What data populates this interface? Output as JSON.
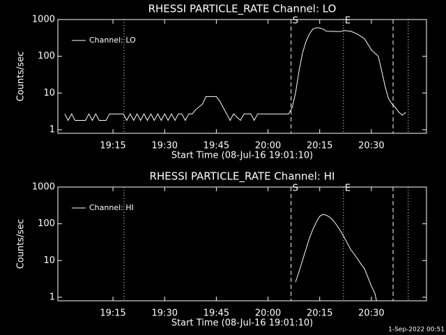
{
  "chart_data": [
    {
      "type": "line",
      "title": "RHESSI PARTICLE_RATE Channel: LO",
      "xlabel": "Start Time (08-Jul-16 19:01:10)",
      "ylabel": "Counts/sec",
      "ylog": true,
      "xlim": [
        "18:59",
        "20:46"
      ],
      "xticks": [
        "19:15",
        "19:30",
        "19:45",
        "20:00",
        "20:15",
        "20:30"
      ],
      "ylim": [
        0.8,
        1000
      ],
      "yticks": [
        1,
        10,
        100,
        1000
      ],
      "legend": "upper left",
      "x": [
        "19:01",
        "19:02",
        "19:03",
        "19:04",
        "19:07",
        "19:08",
        "19:09",
        "19:10",
        "19:11",
        "19:13",
        "19:14",
        "19:18",
        "19:19",
        "19:20",
        "19:21",
        "19:22",
        "19:23",
        "19:24",
        "19:25",
        "19:26",
        "19:27",
        "19:28",
        "19:29",
        "19:30",
        "19:31",
        "19:32",
        "19:33",
        "19:34",
        "19:35",
        "19:36",
        "19:37",
        "19:38",
        "19:39",
        "19:41",
        "19:42",
        "19:45",
        "19:46",
        "19:47",
        "19:48",
        "19:49",
        "19:50",
        "19:52",
        "19:53",
        "19:55",
        "19:56",
        "19:57",
        "20:06",
        "20:07",
        "20:08",
        "20:09",
        "20:10",
        "20:11",
        "20:12",
        "20:13",
        "20:14",
        "20:15",
        "20:16",
        "20:17",
        "20:21",
        "20:22",
        "20:24",
        "20:26",
        "20:28",
        "20:30",
        "20:32",
        "20:33",
        "20:34",
        "20:35",
        "20:36",
        "20:37",
        "20:38",
        "20:39",
        "20:40"
      ],
      "series": [
        {
          "name": "Channel: LO",
          "color": "#ffffff",
          "values": [
            2.7,
            1.8,
            2.7,
            1.8,
            1.8,
            2.7,
            1.8,
            2.7,
            1.8,
            1.8,
            2.7,
            2.7,
            1.8,
            2.7,
            1.8,
            2.7,
            1.8,
            2.7,
            1.8,
            2.7,
            1.8,
            2.7,
            1.8,
            2.7,
            1.8,
            2.7,
            1.8,
            2.7,
            2.7,
            1.8,
            2.7,
            2.7,
            3.5,
            5,
            8,
            8,
            6,
            4,
            2.7,
            1.8,
            2.7,
            1.8,
            2.7,
            2.7,
            1.8,
            2.7,
            2.7,
            4,
            10,
            40,
            120,
            250,
            400,
            550,
            600,
            590,
            550,
            480,
            470,
            500,
            480,
            400,
            300,
            150,
            100,
            40,
            15,
            7,
            5,
            4,
            3,
            2.5,
            3
          ]
        }
      ],
      "annotations": [
        {
          "x": "19:18:12",
          "style": "dotted"
        },
        {
          "x": "20:06:42",
          "style": "dashed",
          "label": "S"
        },
        {
          "x": "20:21:54",
          "style": "dotted",
          "label": "E"
        },
        {
          "x": "20:36:18",
          "style": "dashed"
        },
        {
          "x": "20:40:42",
          "style": "dotted"
        }
      ]
    },
    {
      "type": "line",
      "title": "RHESSI PARTICLE_RATE Channel: HI",
      "xlabel": "Start Time (08-Jul-16 19:01:10)",
      "ylabel": "Counts/sec",
      "ylog": true,
      "xlim": [
        "18:59",
        "20:46"
      ],
      "xticks": [
        "19:15",
        "19:30",
        "19:45",
        "20:00",
        "20:15",
        "20:30"
      ],
      "ylim": [
        0.8,
        1000
      ],
      "yticks": [
        1,
        10,
        100,
        1000
      ],
      "legend": "upper left",
      "x": [
        "20:08",
        "20:09",
        "20:10",
        "20:11",
        "20:12",
        "20:13",
        "20:14",
        "20:15",
        "20:16",
        "20:17",
        "20:18",
        "20:19",
        "20:20",
        "20:21",
        "20:22",
        "20:23",
        "20:24",
        "20:25",
        "20:26",
        "20:27",
        "20:28",
        "20:29",
        "20:30",
        "20:31",
        "20:31:30"
      ],
      "series": [
        {
          "name": "Channel: HI",
          "color": "#ffffff",
          "values": [
            2.6,
            5,
            10,
            20,
            40,
            70,
            110,
            160,
            180,
            170,
            150,
            120,
            90,
            65,
            45,
            30,
            20,
            15,
            11,
            8,
            6,
            3.5,
            2,
            1.3,
            0.8
          ]
        }
      ],
      "annotations": [
        {
          "x": "19:18:12",
          "style": "dotted"
        },
        {
          "x": "20:06:42",
          "style": "dashed",
          "label": "S"
        },
        {
          "x": "20:21:54",
          "style": "dotted",
          "label": "E"
        },
        {
          "x": "20:36:18",
          "style": "dashed"
        },
        {
          "x": "20:40:42",
          "style": "dotted"
        }
      ]
    }
  ],
  "footer": "1-Sep-2022 00:51"
}
